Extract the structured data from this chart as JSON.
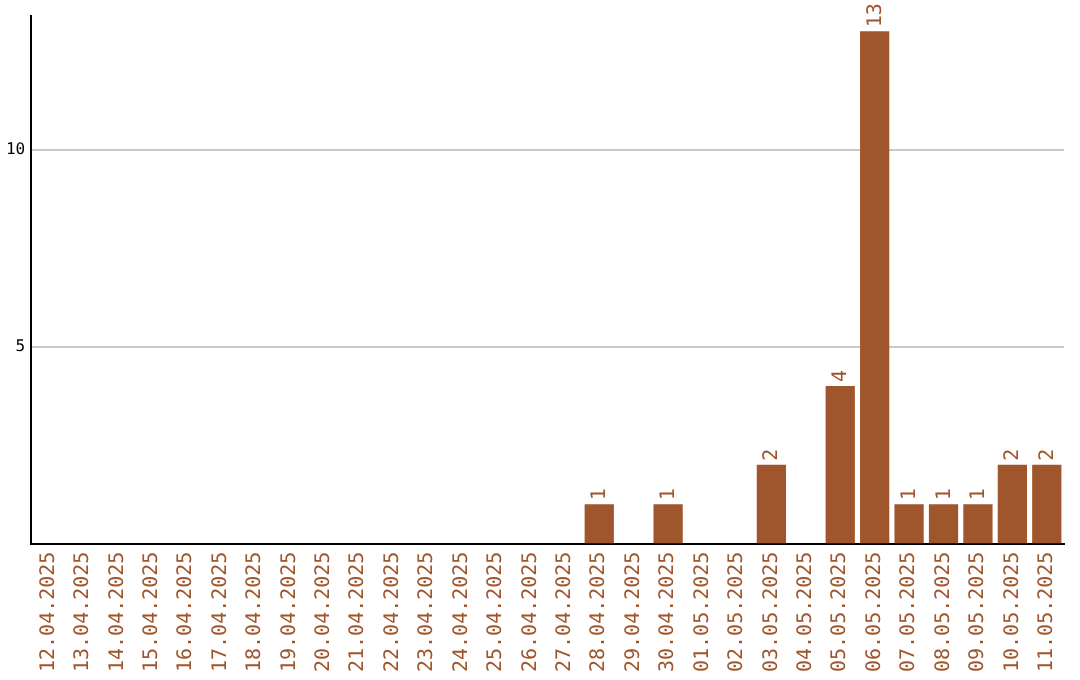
{
  "chart_data": {
    "type": "bar",
    "categories": [
      "12.04.2025",
      "13.04.2025",
      "14.04.2025",
      "15.04.2025",
      "16.04.2025",
      "17.04.2025",
      "18.04.2025",
      "19.04.2025",
      "20.04.2025",
      "21.04.2025",
      "22.04.2025",
      "23.04.2025",
      "24.04.2025",
      "25.04.2025",
      "26.04.2025",
      "27.04.2025",
      "28.04.2025",
      "29.04.2025",
      "30.04.2025",
      "01.05.2025",
      "02.05.2025",
      "03.05.2025",
      "04.05.2025",
      "05.05.2025",
      "06.05.2025",
      "07.05.2025",
      "08.05.2025",
      "09.05.2025",
      "10.05.2025",
      "11.05.2025"
    ],
    "values": [
      0,
      0,
      0,
      0,
      0,
      0,
      0,
      0,
      0,
      0,
      0,
      0,
      0,
      0,
      0,
      0,
      1,
      0,
      1,
      0,
      0,
      2,
      0,
      4,
      13,
      1,
      1,
      1,
      2,
      2
    ],
    "value_labels": [
      null,
      null,
      null,
      null,
      null,
      null,
      null,
      null,
      null,
      null,
      null,
      null,
      null,
      null,
      null,
      null,
      "1",
      null,
      "1",
      null,
      null,
      "2",
      null,
      "4",
      "13",
      "1",
      "1",
      "1",
      "2",
      "2"
    ],
    "color": "#a0562c",
    "ylim": [
      0,
      13.4
    ],
    "yticks": [
      5,
      10
    ],
    "grid": "y",
    "legend": false
  }
}
